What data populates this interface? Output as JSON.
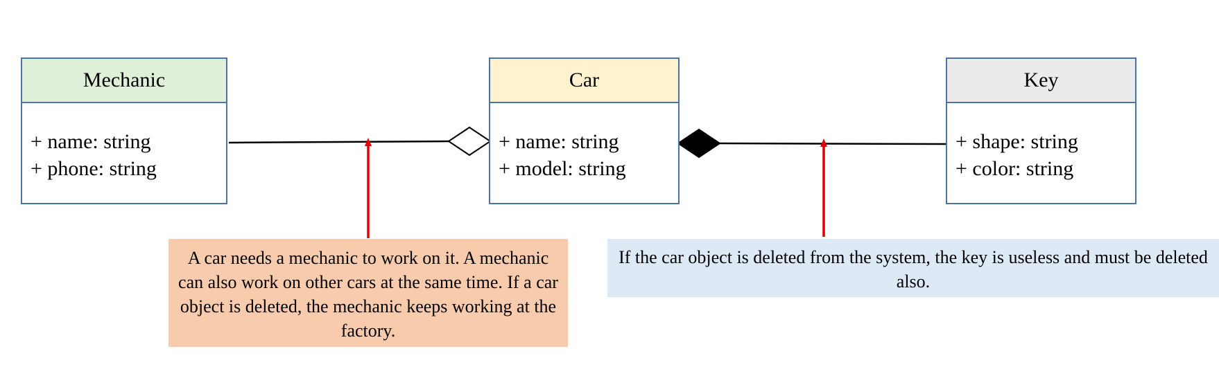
{
  "classes": {
    "mechanic": {
      "name": "Mechanic",
      "attributes": [
        "+ name: string",
        "+ phone: string"
      ],
      "header_color": "#dff0d8"
    },
    "car": {
      "name": "Car",
      "attributes": [
        "+ name: string",
        "+ model: string"
      ],
      "header_color": "#fff2cc"
    },
    "key": {
      "name": "Key",
      "attributes": [
        "+ shape: string",
        "+ color: string"
      ],
      "header_color": "#ebebeb"
    }
  },
  "relationships": {
    "aggregation": {
      "from": "Mechanic",
      "to": "Car",
      "marker": "hollow-diamond"
    },
    "composition": {
      "from": "Key",
      "to": "Car",
      "marker": "filled-diamond"
    }
  },
  "notes": {
    "aggregation": "A car needs a mechanic to work on it. A mechanic can also work on other cars at the same time. If a car object is deleted, the mechanic keeps working at the factory.",
    "composition": "If the car object is deleted from the system, the key is useless and must be deleted also."
  },
  "colors": {
    "box_border": "#4a74a8",
    "pointer_arrow": "#e00000",
    "aggregation_note_bg": "#f8cbad",
    "composition_note_bg": "#dde9f5"
  }
}
